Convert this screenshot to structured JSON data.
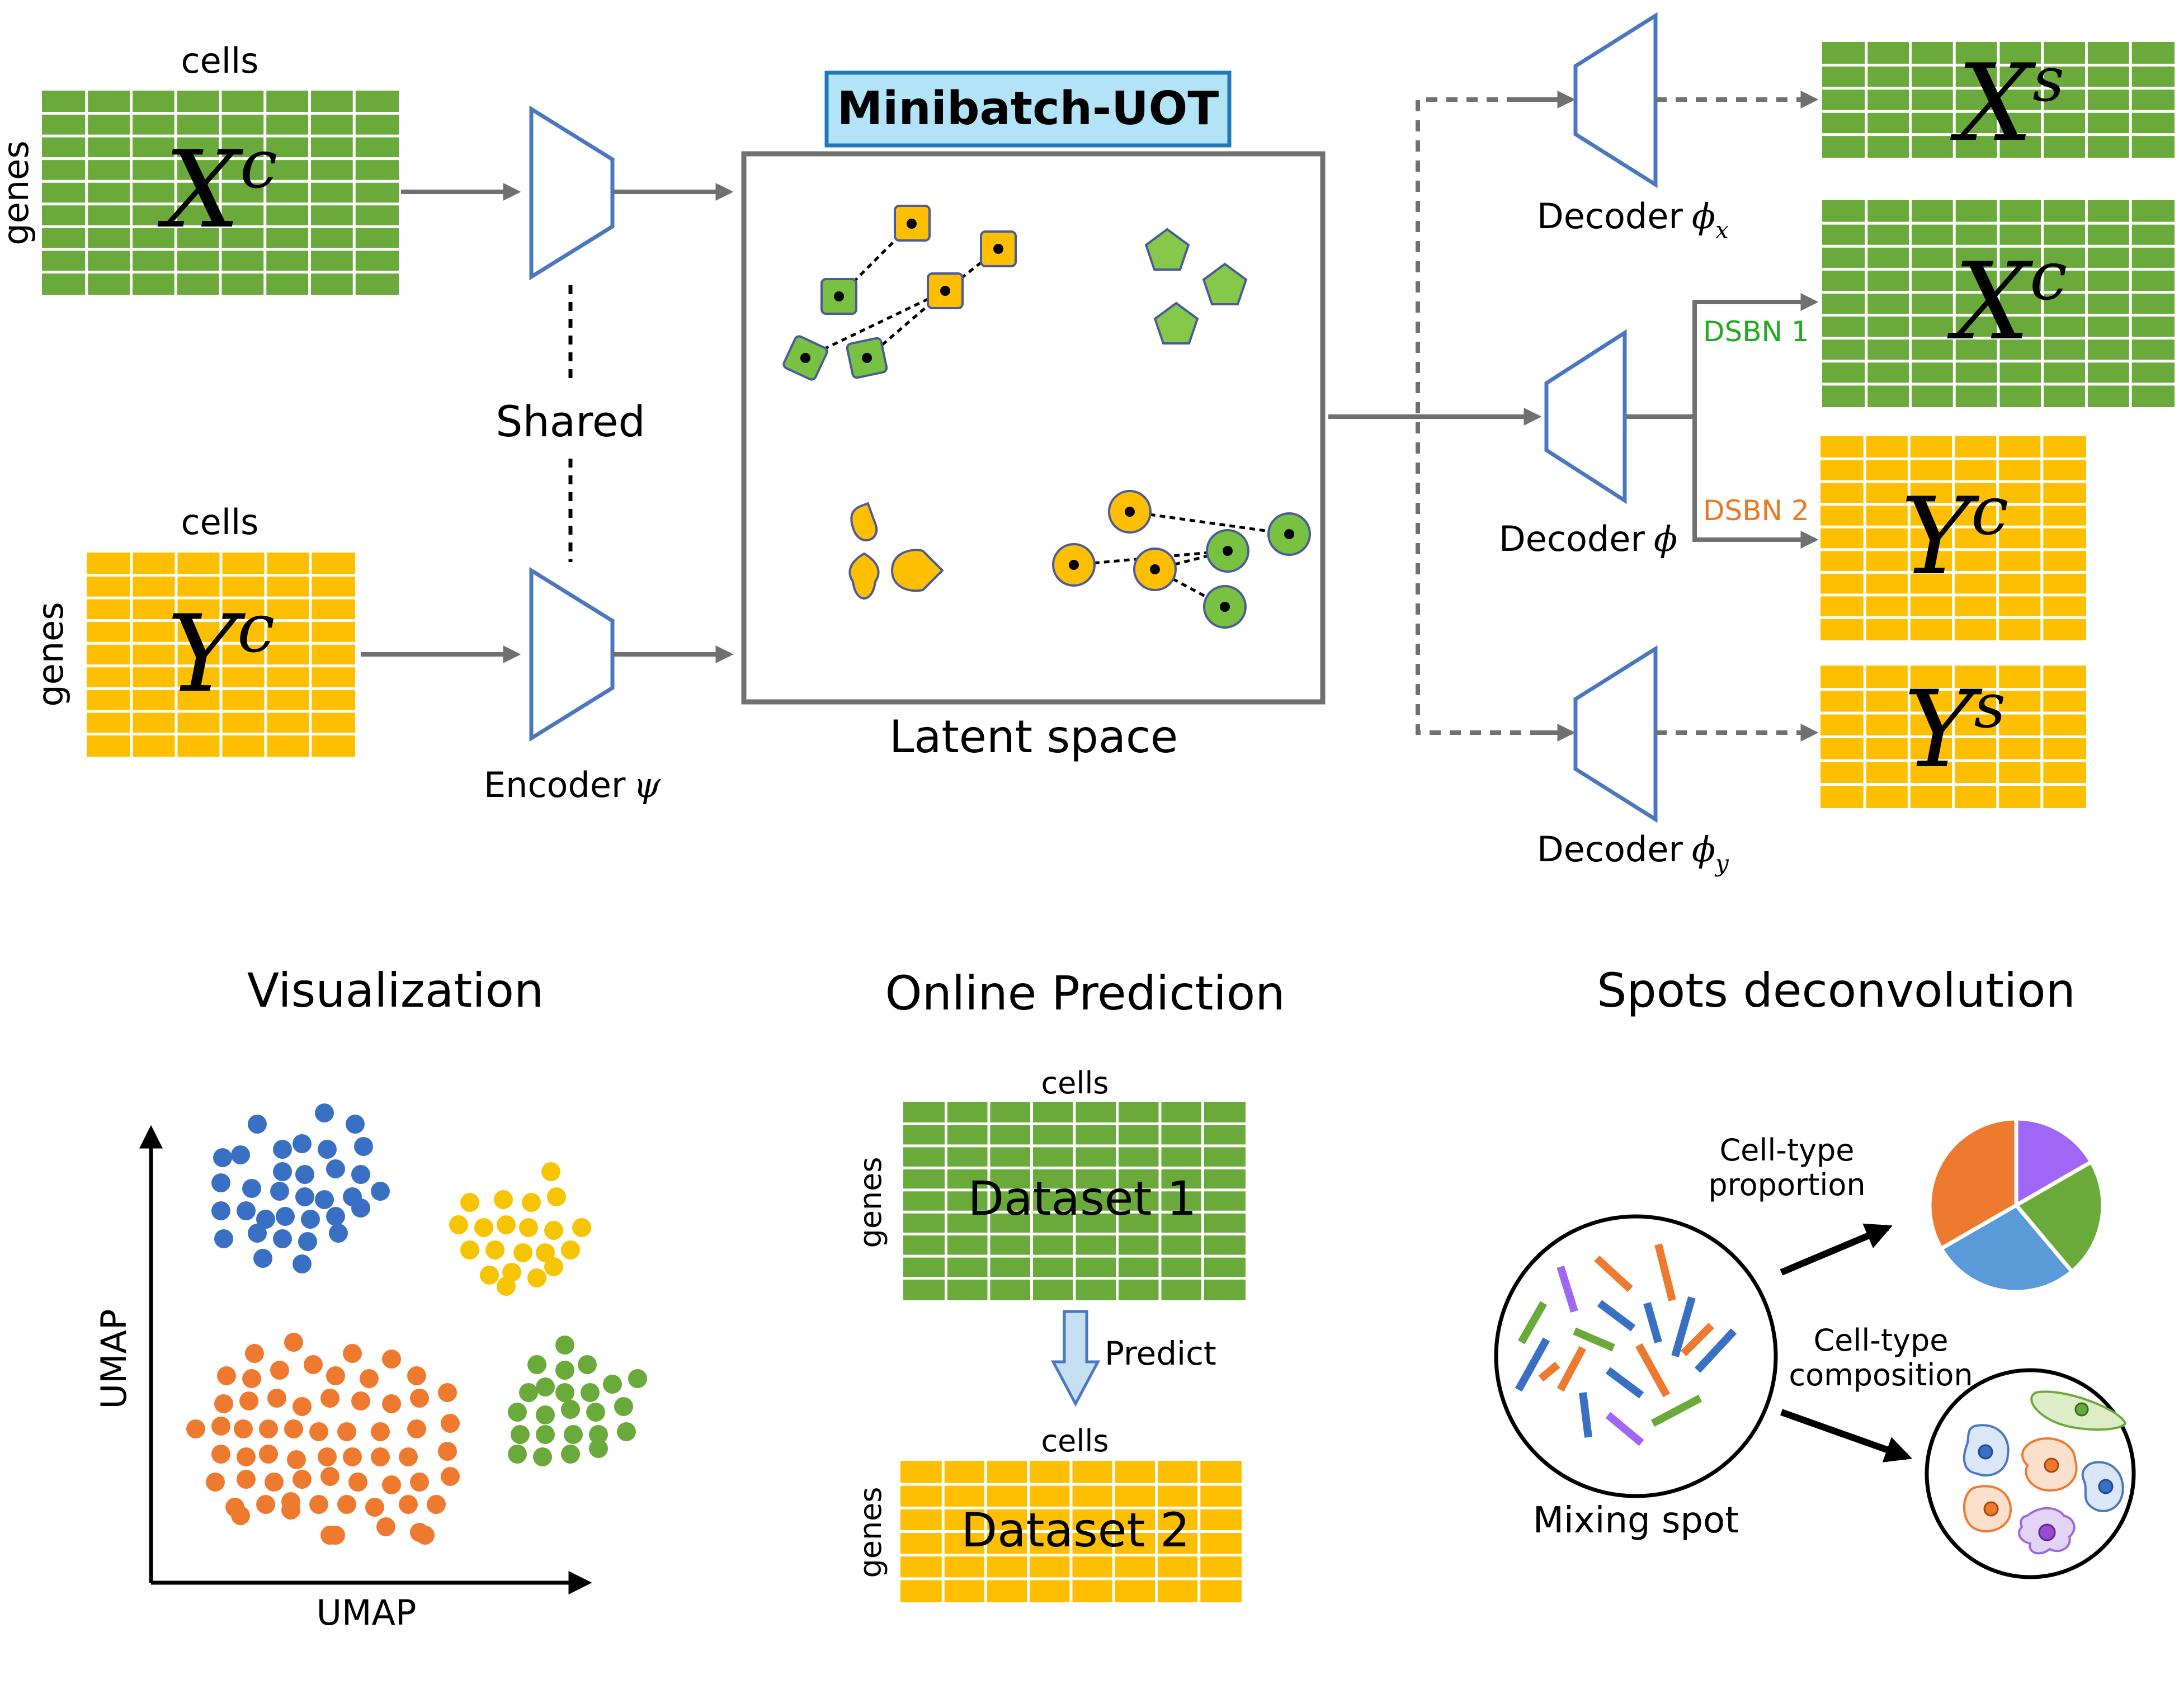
{
  "matrices": {
    "xc_input": {
      "symbol": "X",
      "sup": "c",
      "top_label": "cells",
      "side_label": "genes"
    },
    "yc_input": {
      "symbol": "Y",
      "sup": "c",
      "top_label": "cells",
      "side_label": "genes"
    },
    "xs_output": {
      "symbol": "X",
      "sup": "s"
    },
    "xc_output": {
      "symbol": "X",
      "sup": "c"
    },
    "yc_output": {
      "symbol": "Y",
      "sup": "c"
    },
    "ys_output": {
      "symbol": "Y",
      "sup": "s"
    },
    "dataset1": {
      "label": "Dataset 1",
      "top_label": "cells",
      "side_label": "genes"
    },
    "dataset2": {
      "label": "Dataset 2",
      "top_label": "cells",
      "side_label": "genes"
    }
  },
  "labels": {
    "shared": "Shared",
    "encoder": "Encoder",
    "encoder_symbol": "ψ",
    "minibatch_uot": "Minibatch-UOT",
    "latent_space": "Latent space",
    "decoder": "Decoder",
    "phi": "ϕ",
    "sub_x": "x",
    "sub_y": "y",
    "dsbn1": "DSBN 1",
    "dsbn2": "DSBN 2",
    "predict": "Predict"
  },
  "panels": {
    "visualization": {
      "title": "Visualization",
      "x_axis": "UMAP",
      "y_axis": "UMAP"
    },
    "online_prediction": {
      "title": "Online Prediction"
    },
    "spots_deconvolution": {
      "title": "Spots deconvolution",
      "proportion_label_1": "Cell-type",
      "proportion_label_2": "proportion",
      "composition_label_1": "Cell-type",
      "composition_label_2": "composition",
      "mixing_spot": "Mixing spot"
    }
  },
  "colors": {
    "green": "#6aaa3a",
    "yellow": "#fdbf00",
    "blue_outline": "#4a78c0",
    "gray": "#707070",
    "dsbn1": "#22aa22",
    "dsbn2": "#ee7722",
    "title_box": "#b3e3f7",
    "umap_blue": "#3a70c4",
    "umap_yellow": "#f6c400",
    "umap_orange": "#ee7a30",
    "umap_green": "#6aaa3a",
    "pie_purple": "#a066f6",
    "pie_green": "#6aaa3a",
    "pie_blue": "#5a9ad8",
    "pie_orange": "#ee7a30"
  }
}
